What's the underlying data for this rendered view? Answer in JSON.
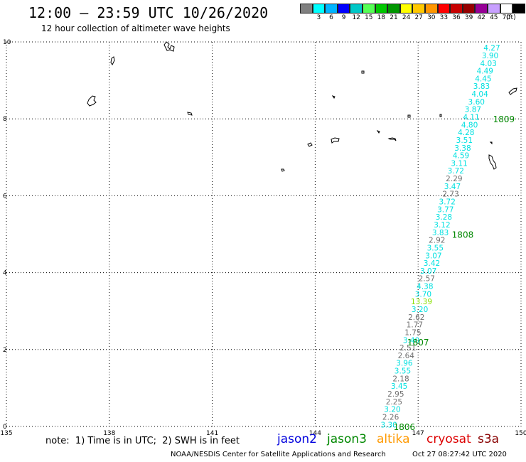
{
  "header": {
    "title": "12:00 – 23:59 UTC 10/26/2020",
    "subtitle": "12 hour collection of altimeter wave heights"
  },
  "color_scale": {
    "unit_label": "(ft)",
    "entries": [
      {
        "label": "",
        "color": "#808080"
      },
      {
        "label": "3",
        "color": "#00ffff"
      },
      {
        "label": "6",
        "color": "#00b4ff"
      },
      {
        "label": "9",
        "color": "#0000ff"
      },
      {
        "label": "12",
        "color": "#00c8c8"
      },
      {
        "label": "15",
        "color": "#55ff55"
      },
      {
        "label": "18",
        "color": "#00c800"
      },
      {
        "label": "21",
        "color": "#009600"
      },
      {
        "label": "24",
        "color": "#ffff00"
      },
      {
        "label": "27",
        "color": "#ffc800"
      },
      {
        "label": "30",
        "color": "#ff9600"
      },
      {
        "label": "33",
        "color": "#ff0000"
      },
      {
        "label": "36",
        "color": "#c80000"
      },
      {
        "label": "39",
        "color": "#960000"
      },
      {
        "label": "42",
        "color": "#960096"
      },
      {
        "label": "45",
        "color": "#c8a0ff"
      },
      {
        "label": "70",
        "color": "#ffffff"
      },
      {
        "label": "",
        "color": "#000000"
      }
    ]
  },
  "axes": {
    "x_ticks": [
      "135",
      "138",
      "141",
      "144",
      "147",
      "150"
    ],
    "y_ticks": [
      "0",
      "2",
      "4",
      "6",
      "8",
      "10"
    ],
    "grid": "dotted"
  },
  "swh_labels": [
    {
      "text": "4.27",
      "lon": 149.15,
      "lat": 9.85,
      "color": "#00e0e0"
    },
    {
      "text": "3.90",
      "lon": 149.1,
      "lat": 9.65,
      "color": "#00e0e0"
    },
    {
      "text": "4.03",
      "lon": 149.05,
      "lat": 9.45,
      "color": "#00e0e0"
    },
    {
      "text": "4.49",
      "lon": 148.95,
      "lat": 9.25,
      "color": "#00e0e0"
    },
    {
      "text": "4.45",
      "lon": 148.9,
      "lat": 9.05,
      "color": "#00e0e0"
    },
    {
      "text": "3.83",
      "lon": 148.85,
      "lat": 8.85,
      "color": "#00e0e0"
    },
    {
      "text": "4.04",
      "lon": 148.8,
      "lat": 8.65,
      "color": "#00e0e0"
    },
    {
      "text": "3.60",
      "lon": 148.7,
      "lat": 8.45,
      "color": "#00e0e0"
    },
    {
      "text": "3.87",
      "lon": 148.6,
      "lat": 8.25,
      "color": "#00e0e0"
    },
    {
      "text": "4.11",
      "lon": 148.55,
      "lat": 8.05,
      "color": "#00e0e0"
    },
    {
      "text": "4.80",
      "lon": 148.5,
      "lat": 7.85,
      "color": "#00e0e0"
    },
    {
      "text": "4.28",
      "lon": 148.4,
      "lat": 7.65,
      "color": "#00e0e0"
    },
    {
      "text": "3.51",
      "lon": 148.35,
      "lat": 7.45,
      "color": "#00e0e0"
    },
    {
      "text": "3.38",
      "lon": 148.3,
      "lat": 7.25,
      "color": "#00e0e0"
    },
    {
      "text": "4.59",
      "lon": 148.25,
      "lat": 7.05,
      "color": "#00e0e0"
    },
    {
      "text": "3.11",
      "lon": 148.2,
      "lat": 6.85,
      "color": "#00e0e0"
    },
    {
      "text": "3.72",
      "lon": 148.1,
      "lat": 6.65,
      "color": "#00e0e0"
    },
    {
      "text": "2.29",
      "lon": 148.05,
      "lat": 6.45,
      "color": "#707070"
    },
    {
      "text": "3.47",
      "lon": 148.0,
      "lat": 6.25,
      "color": "#00e0e0"
    },
    {
      "text": "2.73",
      "lon": 147.95,
      "lat": 6.05,
      "color": "#707070"
    },
    {
      "text": "3.72",
      "lon": 147.85,
      "lat": 5.85,
      "color": "#00e0e0"
    },
    {
      "text": "3.77",
      "lon": 147.8,
      "lat": 5.65,
      "color": "#00e0e0"
    },
    {
      "text": "3.28",
      "lon": 147.75,
      "lat": 5.45,
      "color": "#00e0e0"
    },
    {
      "text": "3.12",
      "lon": 147.7,
      "lat": 5.25,
      "color": "#00e0e0"
    },
    {
      "text": "3.83",
      "lon": 147.65,
      "lat": 5.05,
      "color": "#00e0e0"
    },
    {
      "text": "2.92",
      "lon": 147.55,
      "lat": 4.85,
      "color": "#707070"
    },
    {
      "text": "3.55",
      "lon": 147.5,
      "lat": 4.65,
      "color": "#00e0e0"
    },
    {
      "text": "3.07",
      "lon": 147.45,
      "lat": 4.45,
      "color": "#00e0e0"
    },
    {
      "text": "3.42",
      "lon": 147.4,
      "lat": 4.25,
      "color": "#00e0e0"
    },
    {
      "text": "3.07",
      "lon": 147.3,
      "lat": 4.05,
      "color": "#00e0e0"
    },
    {
      "text": "2.57",
      "lon": 147.25,
      "lat": 3.85,
      "color": "#707070"
    },
    {
      "text": "4.38",
      "lon": 147.2,
      "lat": 3.65,
      "color": "#00e0e0"
    },
    {
      "text": "3.70",
      "lon": 147.15,
      "lat": 3.45,
      "color": "#00e0e0"
    },
    {
      "text": "13.39",
      "lon": 147.1,
      "lat": 3.25,
      "color": "#88e000"
    },
    {
      "text": "3.20",
      "lon": 147.05,
      "lat": 3.05,
      "color": "#00e0e0"
    },
    {
      "text": "2.62",
      "lon": 146.95,
      "lat": 2.85,
      "color": "#707070"
    },
    {
      "text": "1.77",
      "lon": 146.9,
      "lat": 2.65,
      "color": "#707070"
    },
    {
      "text": "1.75",
      "lon": 146.85,
      "lat": 2.45,
      "color": "#707070"
    },
    {
      "text": "3.40",
      "lon": 146.8,
      "lat": 2.25,
      "color": "#00e0e0"
    },
    {
      "text": "2.51",
      "lon": 146.7,
      "lat": 2.05,
      "color": "#707070"
    },
    {
      "text": "2.64",
      "lon": 146.65,
      "lat": 1.85,
      "color": "#707070"
    },
    {
      "text": "3.96",
      "lon": 146.6,
      "lat": 1.65,
      "color": "#00e0e0"
    },
    {
      "text": "3.55",
      "lon": 146.55,
      "lat": 1.45,
      "color": "#00e0e0"
    },
    {
      "text": "2.18",
      "lon": 146.5,
      "lat": 1.25,
      "color": "#707070"
    },
    {
      "text": "3.45",
      "lon": 146.45,
      "lat": 1.05,
      "color": "#00e0e0"
    },
    {
      "text": "2.95",
      "lon": 146.35,
      "lat": 0.85,
      "color": "#707070"
    },
    {
      "text": "2.25",
      "lon": 146.3,
      "lat": 0.65,
      "color": "#707070"
    },
    {
      "text": "3.20",
      "lon": 146.25,
      "lat": 0.45,
      "color": "#00e0e0"
    },
    {
      "text": "2.26",
      "lon": 146.2,
      "lat": 0.25,
      "color": "#707070"
    },
    {
      "text": "3.30",
      "lon": 146.15,
      "lat": 0.05,
      "color": "#00e0e0"
    }
  ],
  "time_labels": [
    {
      "text": "1809",
      "lon": 149.5,
      "lat": 8.0
    },
    {
      "text": "1808",
      "lon": 148.3,
      "lat": 5.0
    },
    {
      "text": "1807",
      "lon": 147.0,
      "lat": 2.2
    },
    {
      "text": "1806",
      "lon": 146.6,
      "lat": 0.0
    }
  ],
  "footer": {
    "note": "note:  1) Time is in UTC;  2) SWH is in feet",
    "satellites": [
      {
        "name": "jason2",
        "color": "#0000dd"
      },
      {
        "name": "jason3",
        "color": "#008800"
      },
      {
        "name": "altika",
        "color": "#ff9900"
      },
      {
        "name": "cryosat",
        "color": "#dd0000"
      },
      {
        "name": "s3a",
        "color": "#880000"
      }
    ],
    "credit": "NOAA/NESDIS Center for Satellite Applications and Research",
    "timestamp": "Oct 27 08:27:42 UTC 2020"
  }
}
